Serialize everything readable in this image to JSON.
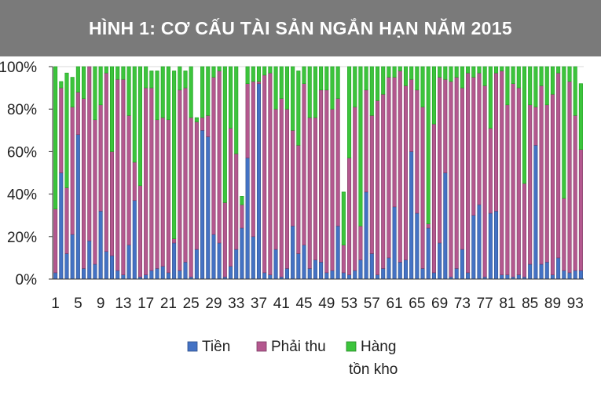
{
  "title": "HÌNH 1: CƠ CẤU TÀI SẢN NGẮN HẠN NĂM 2015",
  "colors": {
    "title_bg": "#7a7a7a",
    "tien": "#4472c4",
    "phai_thu": "#b4588f",
    "hang_ton_kho": "#3cc43c"
  },
  "chart_data": {
    "type": "bar",
    "stacked": true,
    "title": "HÌNH 1: CƠ CẤU TÀI SẢN NGẮN HẠN NĂM 2015",
    "xlabel": "",
    "ylabel": "",
    "ylim": [
      0,
      100
    ],
    "y_ticks": [
      "0%",
      "20%",
      "40%",
      "60%",
      "80%",
      "100%"
    ],
    "x_tick_labels": [
      "1",
      "5",
      "9",
      "13",
      "17",
      "21",
      "25",
      "29",
      "33",
      "37",
      "41",
      "45",
      "49",
      "53",
      "57",
      "61",
      "65",
      "69",
      "73",
      "77",
      "81",
      "85",
      "89",
      "93"
    ],
    "x_tick_every": 4,
    "grid": false,
    "legend_position": "bottom",
    "categories": [
      1,
      2,
      3,
      4,
      5,
      6,
      7,
      8,
      9,
      10,
      11,
      12,
      13,
      14,
      15,
      16,
      17,
      18,
      19,
      20,
      21,
      22,
      23,
      24,
      25,
      26,
      27,
      28,
      29,
      30,
      31,
      32,
      33,
      34,
      35,
      36,
      37,
      38,
      39,
      40,
      41,
      42,
      43,
      44,
      45,
      46,
      47,
      48,
      49,
      50,
      51,
      52,
      53,
      54,
      55,
      56,
      57,
      58,
      59,
      60,
      61,
      62,
      63,
      64,
      65,
      66,
      67,
      68,
      69,
      70,
      71,
      72,
      73,
      74,
      75,
      76,
      77,
      78,
      79,
      80,
      81,
      82,
      83,
      84,
      85,
      86,
      87,
      88,
      89,
      90,
      91,
      92,
      93,
      94
    ],
    "series": [
      {
        "name": "Tiền",
        "values": [
          3,
          50,
          12,
          21,
          68,
          5,
          18,
          7,
          32,
          13,
          11,
          4,
          2,
          16,
          37,
          1,
          2,
          4,
          5,
          6,
          3,
          17,
          4,
          8,
          1,
          14,
          70,
          67,
          21,
          17,
          1,
          6,
          14,
          24,
          57,
          20,
          92,
          3,
          2,
          14,
          1,
          5,
          25,
          12,
          16,
          5,
          9,
          8,
          3,
          4,
          25,
          3,
          2,
          4,
          9,
          41,
          12,
          2,
          5,
          10,
          34,
          8,
          9,
          60,
          31,
          5,
          24,
          3,
          17,
          50,
          1,
          5,
          14,
          3,
          30,
          35,
          1,
          31,
          32,
          2,
          2,
          1,
          2,
          1,
          7,
          63,
          7,
          8,
          2,
          10,
          4,
          3,
          4,
          4
        ]
      },
      {
        "name": "Phải thu",
        "values": [
          30,
          40,
          31,
          60,
          20,
          80,
          82,
          68,
          50,
          84,
          49,
          90,
          92,
          61,
          18,
          43,
          88,
          86,
          70,
          70,
          72,
          2,
          85,
          82,
          75,
          60,
          6,
          10,
          74,
          81,
          35,
          65,
          45,
          11,
          35,
          73,
          1,
          93,
          95,
          66,
          84,
          75,
          45,
          51,
          76,
          71,
          67,
          81,
          86,
          76,
          60,
          13,
          55,
          77,
          16,
          48,
          65,
          82,
          82,
          85,
          61,
          90,
          82,
          34,
          58,
          76,
          2,
          70,
          78,
          44,
          92,
          90,
          76,
          94,
          65,
          62,
          90,
          40,
          65,
          96,
          80,
          91,
          88,
          44,
          75,
          18,
          84,
          74,
          85,
          87,
          34,
          90,
          73,
          57
        ]
      },
      {
        "name": "Hàng tồn kho",
        "values": [
          67,
          3,
          54,
          14,
          12,
          15,
          0,
          25,
          18,
          3,
          40,
          6,
          6,
          23,
          45,
          56,
          10,
          8,
          23,
          24,
          25,
          79,
          11,
          8,
          24,
          2,
          24,
          23,
          5,
          2,
          64,
          29,
          41,
          4,
          8,
          7,
          7,
          4,
          3,
          20,
          15,
          20,
          30,
          35,
          8,
          24,
          24,
          11,
          11,
          20,
          15,
          25,
          43,
          19,
          75,
          11,
          23,
          16,
          13,
          5,
          5,
          2,
          9,
          6,
          11,
          19,
          74,
          27,
          5,
          6,
          7,
          5,
          10,
          3,
          5,
          3,
          9,
          29,
          3,
          2,
          18,
          8,
          10,
          55,
          18,
          19,
          9,
          18,
          13,
          3,
          62,
          7,
          23,
          31
        ]
      }
    ]
  },
  "legend": {
    "items": [
      {
        "label": "Tiền"
      },
      {
        "label": "Phải thu"
      },
      {
        "label": "Hàng",
        "label_line2": "tồn kho"
      }
    ]
  }
}
